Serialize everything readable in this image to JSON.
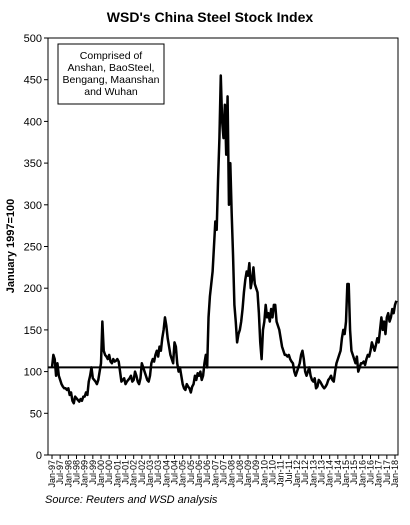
{
  "chart_data": {
    "type": "line",
    "title": "WSD's China Steel Stock Index",
    "y_label": "January 1997=100",
    "annotation": [
      "Comprised  of",
      "Anshan, BaoSteel,",
      "Bengang,  Maanshan",
      "and Wuhan"
    ],
    "source": "Source:  Reuters and WSD analysis",
    "ylim": [
      0,
      500
    ],
    "yticks": [
      0,
      50,
      100,
      150,
      200,
      250,
      300,
      350,
      400,
      450,
      500
    ],
    "reference_line": 105,
    "categories": [
      "Jan-97",
      null,
      null,
      null,
      null,
      null,
      "Jul-97",
      null,
      null,
      null,
      null,
      null,
      "Jan-98",
      null,
      null,
      null,
      null,
      null,
      "Jul-98",
      null,
      null,
      null,
      null,
      null,
      "Jan-99",
      null,
      null,
      null,
      null,
      null,
      "Jul-99",
      null,
      null,
      null,
      null,
      null,
      "Jan-00",
      null,
      null,
      null,
      null,
      null,
      "Jul-00",
      null,
      null,
      null,
      null,
      null,
      "Jan-01",
      null,
      null,
      null,
      null,
      null,
      "Jul-01",
      null,
      null,
      null,
      null,
      null,
      "Jan-02",
      null,
      null,
      null,
      null,
      null,
      "Jul-02",
      null,
      null,
      null,
      null,
      null,
      "Jan-03",
      null,
      null,
      null,
      null,
      null,
      "Jul-03",
      null,
      null,
      null,
      null,
      null,
      "Jan-04",
      null,
      null,
      null,
      null,
      null,
      "Jul-04",
      null,
      null,
      null,
      null,
      null,
      "Jan-05",
      null,
      null,
      null,
      null,
      null,
      "Jul-05",
      null,
      null,
      null,
      null,
      null,
      "Jan-06",
      null,
      null,
      null,
      null,
      null,
      "Jul-06",
      null,
      null,
      null,
      null,
      null,
      "Jan-07",
      null,
      null,
      null,
      null,
      null,
      "Jul-07",
      null,
      null,
      null,
      null,
      null,
      "Jan-08",
      null,
      null,
      null,
      null,
      null,
      "Jul-08",
      null,
      null,
      null,
      null,
      null,
      "Jan-09",
      null,
      null,
      null,
      null,
      null,
      "Jul-09",
      null,
      null,
      null,
      null,
      null,
      "Jan-10",
      null,
      null,
      null,
      null,
      null,
      "Jul-10",
      null,
      null,
      null,
      null,
      null,
      "Jan-11",
      null,
      null,
      null,
      null,
      null,
      "Jul-11",
      null,
      null,
      null,
      null,
      null,
      "Jan-12",
      null,
      null,
      null,
      null,
      null,
      "Jul-12",
      null,
      null,
      null,
      null,
      null,
      "Jan-13",
      null,
      null,
      null,
      null,
      null,
      "Jul-13",
      null,
      null,
      null,
      null,
      null,
      "Jan-14",
      null,
      null,
      null,
      null,
      null,
      "Jul-14",
      null,
      null,
      null,
      null,
      null,
      "Jan-15",
      null,
      null,
      null,
      null,
      null,
      "Jul-15",
      null,
      null,
      null,
      null,
      null,
      "Jan-16",
      null,
      null,
      null,
      null,
      null,
      "Jul-16",
      null,
      null,
      null,
      null,
      null,
      "Jan-17",
      null,
      null,
      null,
      null,
      null,
      "Jul-17",
      null,
      null,
      null,
      null,
      null,
      "Jan-18",
      null
    ],
    "series": [
      {
        "name": "China Steel Stock Index",
        "color": "#000000",
        "values": [
          105,
          120,
          115,
          95,
          110,
          95,
          90,
          85,
          82,
          80,
          80,
          78,
          80,
          72,
          75,
          65,
          62,
          70,
          68,
          66,
          64,
          67,
          65,
          70,
          70,
          75,
          72,
          88,
          95,
          105,
          92,
          90,
          88,
          85,
          90,
          100,
          110,
          160,
          125,
          120,
          118,
          115,
          120,
          112,
          110,
          115,
          112,
          113,
          115,
          112,
          100,
          88,
          90,
          92,
          85,
          88,
          90,
          92,
          95,
          88,
          90,
          100,
          95,
          88,
          85,
          92,
          110,
          105,
          100,
          95,
          90,
          88,
          95,
          110,
          115,
          112,
          120,
          125,
          118,
          130,
          125,
          140,
          150,
          165,
          155,
          140,
          130,
          120,
          115,
          110,
          135,
          130,
          110,
          100,
          105,
          95,
          85,
          80,
          78,
          85,
          82,
          80,
          75,
          82,
          85,
          95,
          90,
          98,
          95,
          100,
          90,
          95,
          110,
          120,
          105,
          165,
          190,
          205,
          220,
          250,
          280,
          270,
          330,
          380,
          455,
          400,
          380,
          420,
          360,
          430,
          300,
          350,
          290,
          240,
          180,
          160,
          135,
          145,
          150,
          160,
          175,
          195,
          210,
          220,
          215,
          230,
          200,
          210,
          225,
          205,
          200,
          195,
          170,
          135,
          115,
          150,
          160,
          180,
          165,
          170,
          160,
          175,
          165,
          180,
          180,
          160,
          155,
          150,
          140,
          130,
          125,
          120,
          120,
          118,
          120,
          115,
          112,
          110,
          100,
          95,
          100,
          105,
          110,
          120,
          125,
          115,
          100,
          95,
          100,
          105,
          95,
          90,
          88,
          92,
          80,
          82,
          90,
          88,
          85,
          82,
          80,
          82,
          85,
          90,
          92,
          95,
          90,
          88,
          100,
          110,
          115,
          120,
          125,
          140,
          150,
          145,
          160,
          205,
          205,
          150,
          125,
          120,
          115,
          110,
          118,
          100,
          105,
          110,
          110,
          112,
          108,
          115,
          120,
          118,
          125,
          135,
          130,
          125,
          132,
          140,
          135,
          150,
          165,
          150,
          160,
          145,
          165,
          170,
          160,
          165,
          175,
          170,
          180,
          185
        ]
      }
    ]
  }
}
